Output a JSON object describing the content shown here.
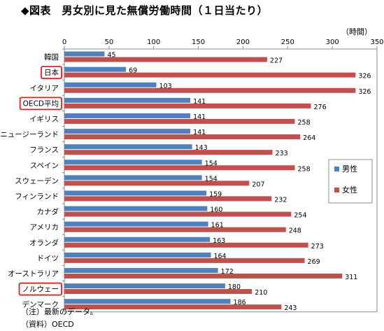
{
  "title": "◆図表　男女別に見た無償労働時間（１日当たり）",
  "unit_label": "（時間）",
  "notes": [
    "（注）最新のデータ。",
    "（資料）OECD"
  ],
  "colors": {
    "male": "#4f81bd",
    "female": "#c0504d",
    "highlight_box": "#e02020"
  },
  "chart_data": {
    "type": "bar",
    "orientation": "horizontal",
    "title": "◆図表　男女別に見た無償労働時間（１日当たり）",
    "xlabel": "（時間）",
    "ylabel": "",
    "xlim": [
      0,
      350
    ],
    "xticks": [
      0,
      50,
      100,
      150,
      200,
      250,
      300,
      350
    ],
    "grid": false,
    "legend_position": "right",
    "categories": [
      "韓国",
      "日本",
      "イタリア",
      "OECD平均",
      "イギリス",
      "ニュージーランド",
      "フランス",
      "スペイン",
      "スウェーデン",
      "フィンランド",
      "カナダ",
      "アメリカ",
      "オランダ",
      "ドイツ",
      "オーストラリア",
      "ノルウェー",
      "デンマーク"
    ],
    "highlighted": [
      "日本",
      "OECD平均",
      "ノルウェー"
    ],
    "series": [
      {
        "name": "男性",
        "values": [
          45,
          69,
          103,
          141,
          141,
          141,
          143,
          154,
          154,
          159,
          160,
          161,
          163,
          164,
          172,
          180,
          186
        ]
      },
      {
        "name": "女性",
        "values": [
          227,
          326,
          326,
          276,
          258,
          264,
          233,
          258,
          207,
          232,
          254,
          248,
          273,
          269,
          311,
          210,
          243
        ]
      }
    ]
  }
}
